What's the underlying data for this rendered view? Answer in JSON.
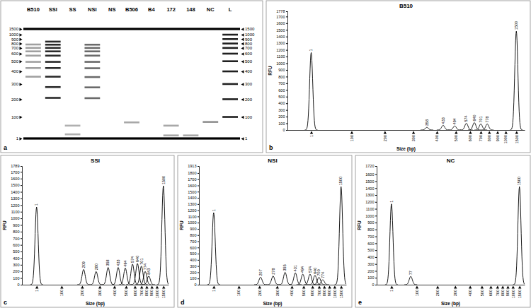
{
  "chart_data": [
    {
      "type": "gel",
      "panel_label": "a",
      "ylim": [
        1,
        1500
      ],
      "yticks": [
        1,
        100,
        200,
        300,
        400,
        500,
        600,
        700,
        800,
        900,
        1000,
        1500
      ],
      "markers": [
        1,
        1500
      ],
      "series": [
        {
          "name": "B510",
          "color": "#a0a0a0",
          "values": [
            358,
            433,
            494,
            574,
            640,
            701,
            778
          ]
        },
        {
          "name": "SSI",
          "color": "#2a2a2a",
          "values": [
            209,
            280,
            358,
            433,
            494,
            574,
            640,
            701,
            774,
            843
          ]
        },
        {
          "name": "SS",
          "color": "#b0b0b0",
          "values": [
            60,
            20
          ]
        },
        {
          "name": "NSI",
          "color": "#6a6a6a",
          "values": [
            207,
            278,
            355,
            431,
            494,
            574,
            640,
            700,
            774
          ]
        },
        {
          "name": "NS",
          "values": []
        },
        {
          "name": "B506",
          "color": "#a8a8a8",
          "values": [
            75
          ]
        },
        {
          "name": "B4",
          "values": []
        },
        {
          "name": "172",
          "color": "#a8a8a8",
          "values": [
            60,
            15
          ]
        },
        {
          "name": "148",
          "color": "#a8a8a8",
          "values": [
            15
          ]
        },
        {
          "name": "NC",
          "color": "#909090",
          "values": [
            77
          ]
        },
        {
          "name": "L",
          "color": "#202020",
          "values": [
            100,
            200,
            300,
            400,
            500,
            600,
            700,
            800,
            900,
            1000
          ]
        }
      ]
    },
    {
      "type": "electropherogram",
      "panel_label": "b",
      "title": "B510",
      "xlabel": "Size (bp)",
      "ylabel": "RFU",
      "x": [
        1,
        358,
        433,
        494,
        574,
        640,
        701,
        778,
        1500
      ],
      "values": [
        1160,
        40,
        70,
        60,
        100,
        110,
        90,
        90,
        1480
      ],
      "xlim": [
        -50,
        1600
      ],
      "xticks": [
        1,
        100,
        200,
        300,
        400,
        500,
        600,
        700,
        800,
        900,
        1000,
        1500
      ],
      "ylim": [
        0,
        1778
      ],
      "yticks": [
        0,
        100,
        200,
        300,
        400,
        500,
        600,
        700,
        800,
        900,
        1000,
        1100,
        1200,
        1300,
        1400,
        1500,
        1600,
        1700,
        1778
      ],
      "data_labels": true
    },
    {
      "type": "electropherogram",
      "panel_label": "c",
      "title": "SSI",
      "xlabel": "Size (bp)",
      "ylabel": "RFU",
      "x": [
        1,
        209,
        280,
        358,
        433,
        494,
        574,
        640,
        701,
        774,
        843,
        1500
      ],
      "values": [
        1170,
        230,
        200,
        260,
        260,
        250,
        310,
        320,
        280,
        200,
        130,
        1490
      ],
      "xlim": [
        -50,
        1600
      ],
      "xticks": [
        1,
        100,
        200,
        300,
        400,
        500,
        600,
        700,
        800,
        900,
        1000,
        1500
      ],
      "ylim": [
        0,
        1789
      ],
      "yticks": [
        0,
        100,
        200,
        300,
        400,
        500,
        600,
        700,
        800,
        900,
        1000,
        1100,
        1200,
        1300,
        1400,
        1500,
        1600,
        1700,
        1789
      ],
      "data_labels": true
    },
    {
      "type": "electropherogram",
      "panel_label": "d",
      "title": "NSI",
      "xlabel": "Size (bp)",
      "ylabel": "RFU",
      "x": [
        1,
        207,
        278,
        355,
        431,
        494,
        574,
        640,
        700,
        774,
        1500
      ],
      "values": [
        1160,
        120,
        140,
        200,
        190,
        170,
        170,
        150,
        120,
        80,
        1580
      ],
      "xlim": [
        -50,
        1600
      ],
      "xticks": [
        1,
        100,
        200,
        300,
        400,
        500,
        600,
        700,
        800,
        900,
        1000,
        1500
      ],
      "ylim": [
        0,
        1913
      ],
      "yticks": [
        0,
        100,
        200,
        300,
        400,
        500,
        600,
        700,
        800,
        900,
        1000,
        1100,
        1200,
        1300,
        1400,
        1500,
        1600,
        1700,
        1800,
        1913
      ],
      "data_labels": true
    },
    {
      "type": "electropherogram",
      "panel_label": "e",
      "title": "NC",
      "xlabel": "Size (bp)",
      "ylabel": "RFU",
      "x": [
        1,
        77,
        1500
      ],
      "values": [
        1170,
        120,
        1420
      ],
      "xlim": [
        -50,
        1600
      ],
      "xticks": [
        1,
        100,
        200,
        300,
        400,
        500,
        600,
        700,
        800,
        900,
        1000,
        1500
      ],
      "ylim": [
        0,
        1720
      ],
      "yticks": [
        0,
        100,
        200,
        300,
        400,
        500,
        600,
        700,
        800,
        900,
        1000,
        1100,
        1200,
        1300,
        1400,
        1500,
        1600,
        1720
      ],
      "data_labels": true
    }
  ]
}
